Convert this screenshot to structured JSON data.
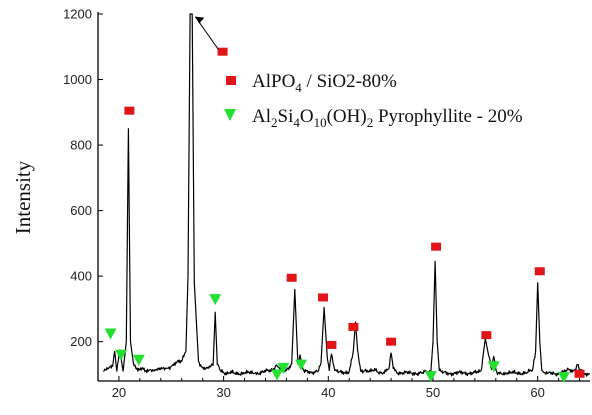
{
  "chart_data": {
    "type": "line",
    "title": "",
    "xlabel": "",
    "ylabel": "Intensity",
    "xlim": [
      18,
      65
    ],
    "ylim": [
      80,
      1200
    ],
    "x_ticks": [
      20,
      30,
      40,
      50,
      60
    ],
    "y_ticks": [
      200,
      400,
      600,
      800,
      1000,
      1200
    ],
    "x_tick_labels": [
      "20",
      "30",
      "40",
      "50",
      "60"
    ],
    "y_tick_labels": [
      "200",
      "400",
      "600",
      "800",
      "1000",
      "1200"
    ],
    "grid": false,
    "legend_position": "top-right",
    "series": [
      {
        "name": "",
        "color": "#000000",
        "baseline": 105,
        "x": [
          18.5,
          19,
          19.4,
          19.6,
          19.8,
          20.1,
          20.4,
          20.7,
          20.9,
          21.1,
          21.4,
          21.8,
          22.2,
          22.6,
          23,
          23.5,
          24,
          24.5,
          25,
          25.5,
          26,
          26.4,
          26.6,
          26.8,
          27,
          27.2,
          27.6,
          28,
          28.5,
          29,
          29.2,
          29.4,
          29.7,
          30.2,
          31,
          32,
          33,
          34,
          34.8,
          35,
          35.3,
          35.6,
          36,
          36.5,
          36.8,
          37.1,
          37.3,
          37.6,
          38,
          38.5,
          39,
          39.3,
          39.6,
          39.9,
          40.1,
          40.3,
          40.6,
          41,
          41.5,
          42,
          42.4,
          42.6,
          42.8,
          43.1,
          43.5,
          44,
          44.5,
          45,
          45.5,
          45.8,
          46,
          46.2,
          46.5,
          47,
          48,
          49,
          49.8,
          50,
          50.2,
          50.4,
          50.6,
          50.8,
          51,
          51.5,
          52,
          53,
          54,
          54.6,
          54.8,
          55,
          55.3,
          55.6,
          55.8,
          56.1,
          56.5,
          57,
          58,
          59,
          59.5,
          59.8,
          60,
          60.2,
          60.4,
          60.7,
          61,
          62,
          62.5,
          62.7,
          63,
          63.5,
          63.8,
          64,
          64.3,
          64.6,
          65
        ],
        "y": [
          110,
          118,
          125,
          170,
          110,
          175,
          110,
          200,
          850,
          200,
          130,
          110,
          120,
          112,
          115,
          113,
          115,
          118,
          125,
          135,
          140,
          170,
          400,
          1200,
          1200,
          380,
          140,
          122,
          122,
          128,
          290,
          130,
          112,
          105,
          104,
          104,
          104,
          108,
          118,
          128,
          120,
          112,
          112,
          132,
          360,
          132,
          160,
          115,
          112,
          107,
          108,
          135,
          305,
          150,
          112,
          162,
          112,
          108,
          107,
          108,
          175,
          260,
          175,
          110,
          112,
          108,
          113,
          105,
          109,
          118,
          165,
          118,
          108,
          104,
          104,
          105,
          110,
          200,
          445,
          200,
          112,
          108,
          106,
          104,
          104,
          104,
          106,
          112,
          160,
          210,
          160,
          115,
          155,
          108,
          104,
          104,
          104,
          106,
          112,
          170,
          380,
          200,
          112,
          106,
          104,
          104,
          108,
          112,
          114,
          112,
          130,
          112,
          108,
          103,
          102
        ]
      }
    ],
    "legend": {
      "entries": [
        {
          "label_main": "AlPO",
          "label_sub": "4",
          "label_tail": " / SiO2-80%",
          "marker": "square",
          "color": "#e0151a"
        },
        {
          "label_parts": [
            "Al",
            "2",
            "Si",
            "4",
            "O",
            "10",
            "(OH)",
            "2",
            " Pyrophyllite - 20%"
          ],
          "marker": "triangle-down",
          "color": "#22e02f"
        }
      ]
    },
    "annotations": {
      "squares": [
        [
          21,
          905
        ],
        [
          29.9,
          1085
        ],
        [
          36.5,
          395
        ],
        [
          39.5,
          335
        ],
        [
          40.3,
          190
        ],
        [
          42.4,
          245
        ],
        [
          46,
          200
        ],
        [
          50.3,
          490
        ],
        [
          55.1,
          220
        ],
        [
          60.2,
          415
        ],
        [
          64,
          102
        ]
      ],
      "triangles": [
        [
          19.2,
          225
        ],
        [
          20.2,
          160
        ],
        [
          21.9,
          145
        ],
        [
          29.2,
          330
        ],
        [
          35.1,
          100
        ],
        [
          35.7,
          120
        ],
        [
          37.4,
          130
        ],
        [
          49.8,
          95
        ],
        [
          55.8,
          125
        ],
        [
          62.5,
          92
        ]
      ],
      "arrow": {
        "from": [
          29.8,
          1085
        ],
        "to": [
          27.1,
          1192
        ]
      }
    }
  }
}
